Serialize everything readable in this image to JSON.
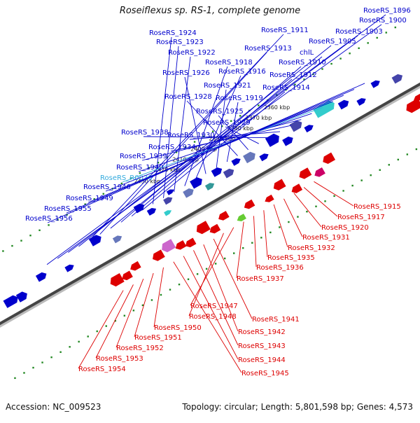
{
  "title": "Roseiflexus sp. RS-1, complete genome",
  "footer": {
    "accession": "Accession: NC_009523",
    "topology": "Topology: circular; Length: 5,801,598 bp; Genes: 4,573"
  },
  "ticks": [
    "2360 kbp",
    "2370 kbp",
    "2380 kbp",
    "2390 kbp",
    "2400 kbp",
    "2410 kbp",
    "2420 kbp",
    "2430 kbp"
  ],
  "top_labels": [
    {
      "text": "RoseRS_1896",
      "color": "#0000cc"
    },
    {
      "text": "RoseRS_1900",
      "color": "#0000cc"
    },
    {
      "text": "RoseRS_1903",
      "color": "#0000cc"
    },
    {
      "text": "RoseRS_1905",
      "color": "#0000cc"
    },
    {
      "text": "RoseRS_1911",
      "color": "#0000cc"
    },
    {
      "text": "RoseRS_1913",
      "color": "#0000cc"
    },
    {
      "text": "chlL",
      "color": "#0000cc"
    },
    {
      "text": "RoseRS_1910",
      "color": "#0000cc"
    },
    {
      "text": "RoseRS_1912",
      "color": "#0000cc"
    },
    {
      "text": "RoseRS_1914",
      "color": "#0000cc"
    },
    {
      "text": "RoseRS_1924",
      "color": "#0000cc"
    },
    {
      "text": "RoseRS_1923",
      "color": "#0000cc"
    },
    {
      "text": "RoseRS_1922",
      "color": "#0000cc"
    },
    {
      "text": "RoseRS_1918",
      "color": "#0000cc"
    },
    {
      "text": "RoseRS_1916",
      "color": "#0000cc"
    },
    {
      "text": "RoseRS_1926",
      "color": "#0000cc"
    },
    {
      "text": "RoseRS_1921",
      "color": "#0000cc"
    },
    {
      "text": "RoseRS_1919",
      "color": "#0000cc"
    },
    {
      "text": "RoseRS_1928",
      "color": "#0000cc"
    },
    {
      "text": "RoseRS_1925",
      "color": "#0000cc"
    },
    {
      "text": "RoseRS_1929",
      "color": "#0000cc"
    },
    {
      "text": "RoseRS_1938",
      "color": "#0000cc"
    },
    {
      "text": "RoseRS_1930",
      "color": "#0000cc"
    },
    {
      "text": "RoseRS_1934",
      "color": "#0000cc"
    },
    {
      "text": "RoseRS_1939",
      "color": "#0000cc"
    },
    {
      "text": "RoseRS_1940",
      "color": "#0000cc"
    },
    {
      "text": "RoseRS_R0030",
      "color": "#33aadd"
    },
    {
      "text": "RoseRS_1946",
      "color": "#0000cc"
    },
    {
      "text": "RoseRS_1949",
      "color": "#0000cc"
    },
    {
      "text": "RoseRS_1955",
      "color": "#0000cc"
    },
    {
      "text": "RoseRS_1956",
      "color": "#0000cc"
    }
  ],
  "bottom_labels": [
    {
      "text": "RoseRS_1915",
      "color": "#dd0000"
    },
    {
      "text": "RoseRS_1917",
      "color": "#dd0000"
    },
    {
      "text": "RoseRS_1920",
      "color": "#dd0000"
    },
    {
      "text": "RoseRS_1931",
      "color": "#dd0000"
    },
    {
      "text": "RoseRS_1932",
      "color": "#dd0000"
    },
    {
      "text": "RoseRS_1935",
      "color": "#dd0000"
    },
    {
      "text": "RoseRS_1936",
      "color": "#dd0000"
    },
    {
      "text": "RoseRS_1937",
      "color": "#dd0000"
    },
    {
      "text": "RoseRS_1947",
      "color": "#dd0000"
    },
    {
      "text": "RoseRS_1948",
      "color": "#dd0000"
    },
    {
      "text": "RoseRS_1941",
      "color": "#dd0000"
    },
    {
      "text": "RoseRS_1942",
      "color": "#dd0000"
    },
    {
      "text": "RoseRS_1943",
      "color": "#dd0000"
    },
    {
      "text": "RoseRS_1944",
      "color": "#dd0000"
    },
    {
      "text": "RoseRS_1945",
      "color": "#dd0000"
    },
    {
      "text": "RoseRS_1950",
      "color": "#dd0000"
    },
    {
      "text": "RoseRS_1951",
      "color": "#dd0000"
    },
    {
      "text": "RoseRS_1952",
      "color": "#dd0000"
    },
    {
      "text": "RoseRS_1953",
      "color": "#dd0000"
    },
    {
      "text": "RoseRS_1954",
      "color": "#dd0000"
    }
  ],
  "colors": {
    "forward": "#0000cc",
    "reverse": "#dd0000",
    "rna": "#33aadd",
    "backbone": "#444444",
    "tick": "#228822"
  }
}
